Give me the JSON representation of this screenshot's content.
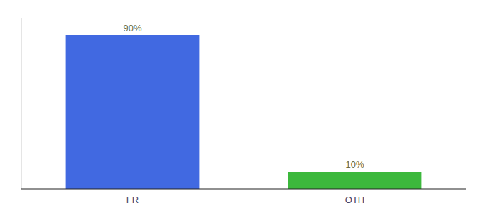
{
  "chart_data": {
    "type": "bar",
    "categories": [
      "FR",
      "OTH"
    ],
    "values": [
      90,
      10
    ],
    "value_labels": [
      "90%",
      "10%"
    ],
    "colors": [
      "#4169e1",
      "#3cb83c"
    ],
    "ylim": [
      0,
      100
    ],
    "data_labels": true,
    "tick_labels": "x",
    "grid": false
  }
}
